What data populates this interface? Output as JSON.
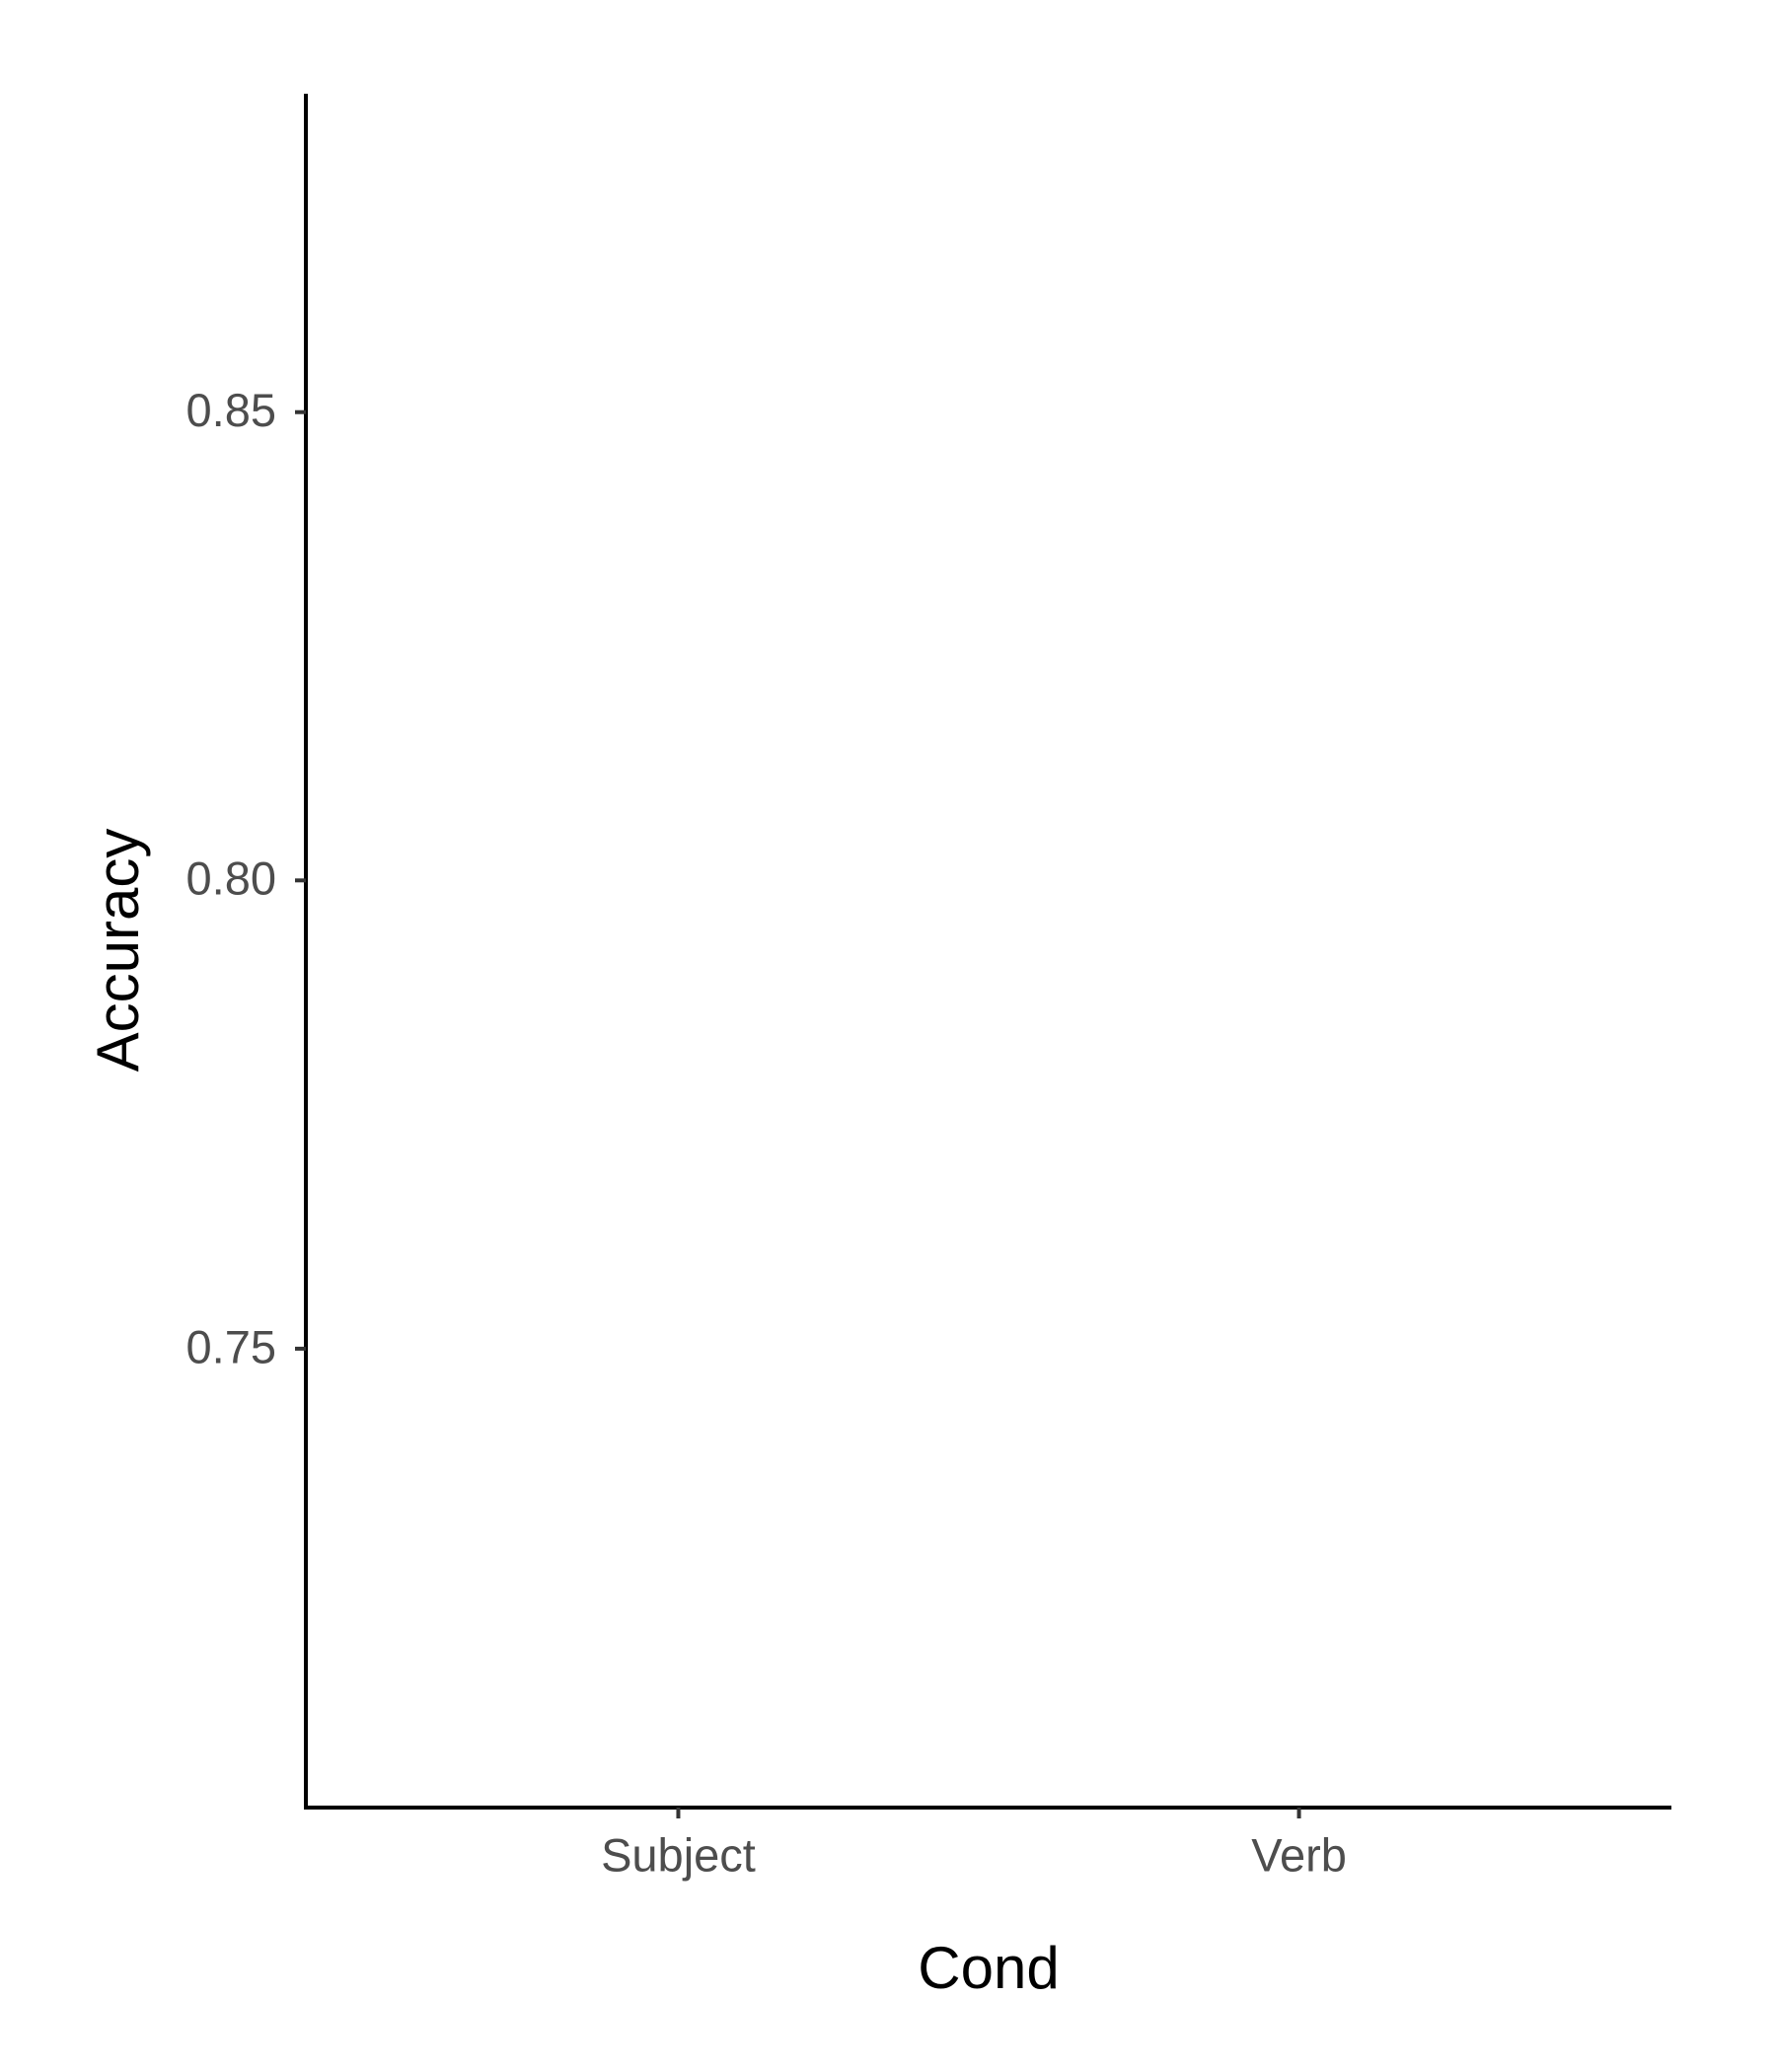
{
  "chart_data": {
    "type": "bar",
    "x_label": "Cond",
    "y_label": "Accuracy",
    "categories": [
      "Subject",
      "Verb"
    ],
    "ylim": [
      0.701,
      0.884
    ],
    "yticks": [
      0.75,
      {
        "value": 0.8,
        "label": "0.80"
      },
      0.85
    ]
  }
}
